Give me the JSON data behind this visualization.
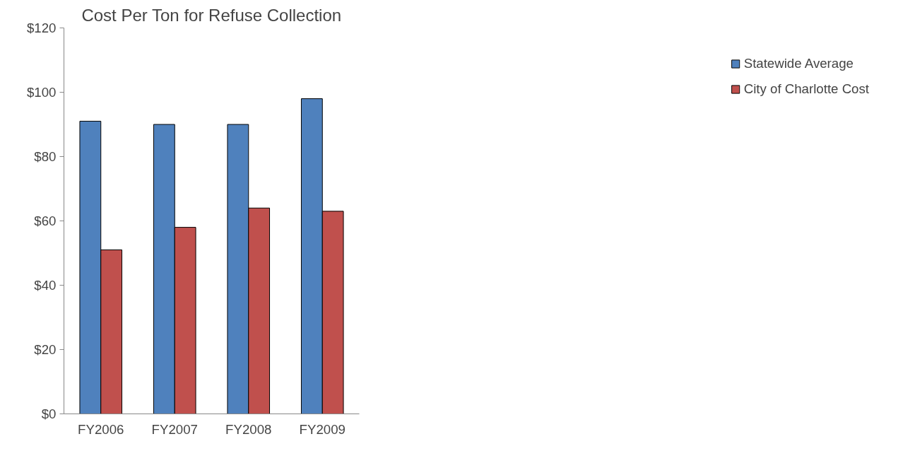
{
  "chart_data": {
    "type": "bar",
    "title": "Cost Per Ton for Refuse Collection",
    "categories": [
      "FY2006",
      "FY2007",
      "FY2008",
      "FY2009"
    ],
    "series": [
      {
        "name": "Statewide Average",
        "color": "#4f81bd",
        "values": [
          91,
          90,
          90,
          98
        ]
      },
      {
        "name": "City of Charlotte Cost",
        "color": "#c0504d",
        "values": [
          51,
          58,
          64,
          63
        ]
      }
    ],
    "ylim": [
      0,
      120
    ],
    "yticks": [
      {
        "value": 0,
        "label": "$0"
      },
      {
        "value": 20,
        "label": "$20"
      },
      {
        "value": 40,
        "label": "$40"
      },
      {
        "value": 60,
        "label": "$60"
      },
      {
        "value": 80,
        "label": "$80"
      },
      {
        "value": 100,
        "label": "$100"
      },
      {
        "value": 120,
        "label": "$120"
      }
    ],
    "grid": false,
    "legend": "right"
  }
}
